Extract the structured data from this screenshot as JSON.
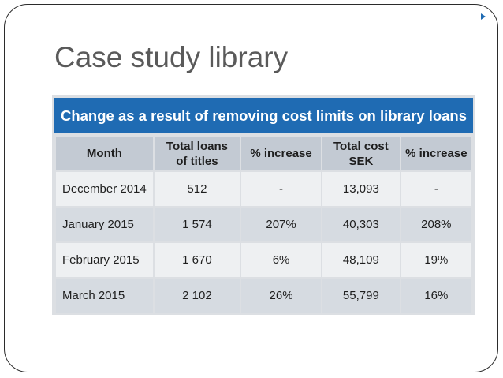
{
  "slide": {
    "title": "Case study library"
  },
  "table": {
    "caption": "Change as a result of removing cost limits on library loans",
    "headers": [
      {
        "line1": "Month",
        "line2": ""
      },
      {
        "line1": "Total loans",
        "line2": "of titles"
      },
      {
        "line1": "% increase",
        "line2": ""
      },
      {
        "line1": "Total cost",
        "line2": "SEK"
      },
      {
        "line1": "% increase",
        "line2": ""
      }
    ],
    "rows": [
      [
        "December 2014",
        "512",
        "-",
        "13,093",
        "-"
      ],
      [
        "January 2015",
        "1 574",
        "207%",
        "40,303",
        "208%"
      ],
      [
        "February 2015",
        "1 670",
        "6%",
        "48,109",
        "19%"
      ],
      [
        "March 2015",
        "2 102",
        "26%",
        "55,799",
        "16%"
      ]
    ]
  },
  "colors": {
    "caption_bg": "#1f6bb3",
    "header_bg": "#c3cad3",
    "row_light": "#eef0f2",
    "row_dark": "#d6dbe1",
    "title_text": "#5a5a5a"
  }
}
